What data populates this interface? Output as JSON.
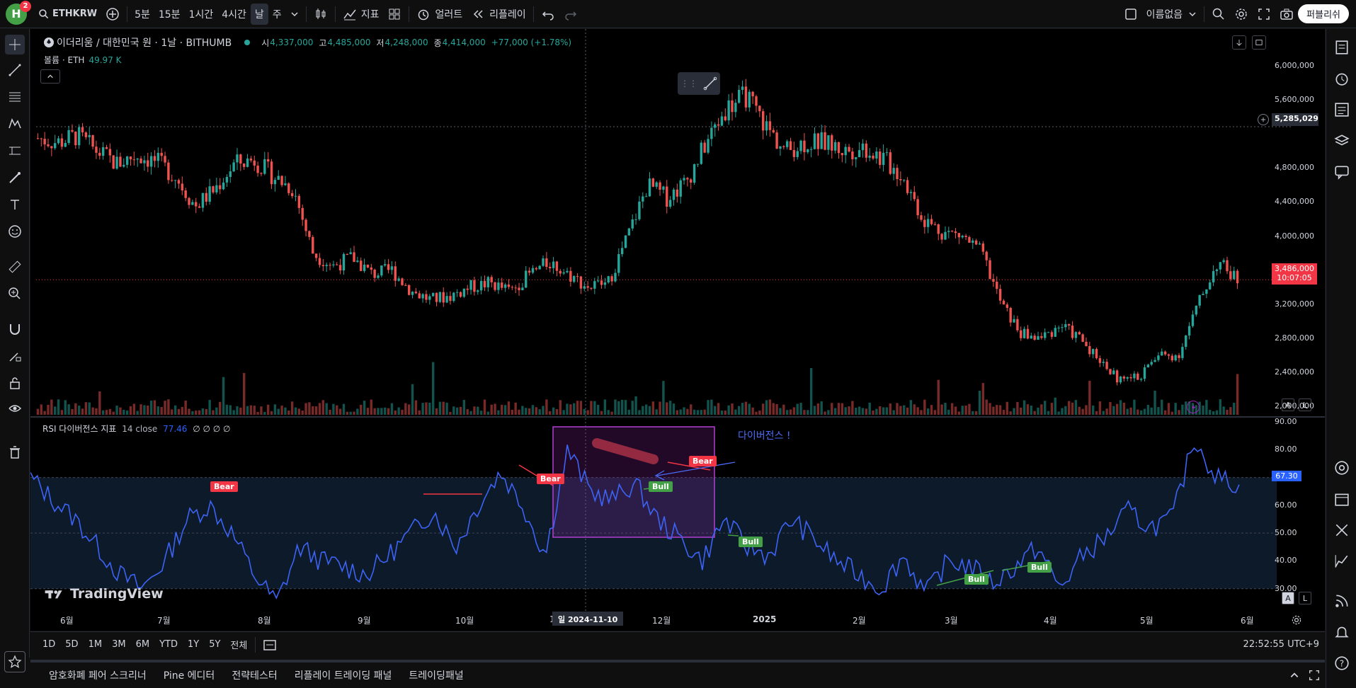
{
  "topbar": {
    "avatar_letter": "H",
    "notifications": "2",
    "symbol": "ETHKRW",
    "intervals": [
      "5분",
      "15분",
      "1시간",
      "4시간",
      "날",
      "주"
    ],
    "active_interval": "날",
    "indicators_label": "지표",
    "alert_label": "얼러트",
    "replay_label": "리플레이",
    "layout_name": "이름없음",
    "publish_label": "퍼블리쉬"
  },
  "legend": {
    "title": "이더리움 / 대한민국 원 · 1날 · BITHUMB",
    "o_label": "시",
    "o_val": "4,337,000",
    "h_label": "고",
    "h_val": "4,485,000",
    "l_label": "저",
    "l_val": "4,248,000",
    "c_label": "종",
    "c_val": "4,414,000",
    "change": "+77,000 (+1.78%)",
    "vol_label": "볼륨 · ETH",
    "vol_val": "49.97 K"
  },
  "rsi_legend": {
    "name": "RSI 다이버전스 지표",
    "params": "14 close",
    "value": "77.46",
    "extra": "∅ ∅ ∅ ∅"
  },
  "price_axis": [
    "6,000,000",
    "5,600,000",
    "5,285,029",
    "4,800,000",
    "4,400,000",
    "4,000,000",
    "3,600,000",
    "3,200,000",
    "2,800,000",
    "2,400,000",
    "2,000,000"
  ],
  "current_price": "3,486,000",
  "countdown": "10:07:05",
  "crosshair_price": "5,285,029",
  "rsi_axis": [
    "90.00",
    "80.00",
    "70.00",
    "60.00",
    "50.00",
    "40.00",
    "30.00"
  ],
  "rsi_current": "67.30",
  "time_axis": [
    "6월",
    "7월",
    "8월",
    "9월",
    "10월",
    "1",
    "12월",
    "2025",
    "2월",
    "3월",
    "4월",
    "5월",
    "6월"
  ],
  "crosshair_time": "일 2024-11-10",
  "annotation": "다이버전스 !",
  "tags": {
    "bear": "Bear",
    "bull": "Bull"
  },
  "watermark": "TradingView",
  "ranges": [
    "1D",
    "5D",
    "1M",
    "3M",
    "6M",
    "YTD",
    "1Y",
    "5Y",
    "전체"
  ],
  "clock": "22:52:55 UTC+9",
  "bottom_panels": [
    "암호화폐 페어 스크리너",
    "Pine 에디터",
    "전략테스터",
    "리플레이 트레이딩 패널",
    "트레이딩패널"
  ],
  "axis_btn_a": "A",
  "axis_btn_l": "L",
  "colors": {
    "up": "#26a69a",
    "down": "#ef5350",
    "rsi": "#3d63f5",
    "bear": "#f23645",
    "bull": "#43a047",
    "box": "#9c27b0"
  },
  "chart_data": {
    "type": "candlestick",
    "x_range": [
      "2024-05-25",
      "2025-05-15"
    ],
    "y_range": [
      1900000,
      6100000
    ],
    "close_series": [
      5150000,
      5100000,
      5180000,
      5000000,
      4850000,
      4950000,
      4880000,
      4700000,
      4350000,
      4550000,
      4850000,
      4900000,
      4700000,
      4550000,
      3800000,
      3650000,
      3750000,
      3550000,
      3600000,
      3350000,
      3250000,
      3300000,
      3400000,
      3450000,
      3350000,
      3550000,
      3700000,
      3550000,
      3400000,
      3450000,
      4000000,
      4600000,
      4450000,
      4650000,
      5100000,
      5500000,
      5650000,
      5300000,
      5000000,
      5100000,
      5100000,
      5000000,
      5050000,
      4900000,
      4700000,
      4200000,
      4050000,
      4000000,
      3800000,
      3200000,
      2850000,
      2800000,
      2950000,
      2800000,
      2550000,
      2300000,
      2350000,
      2600000,
      2600000,
      3200000,
      3700000,
      3486000
    ],
    "rsi_series": [
      70,
      62,
      55,
      45,
      35,
      30,
      40,
      55,
      60,
      50,
      35,
      25,
      45,
      40,
      38,
      35,
      42,
      50,
      58,
      45,
      60,
      72,
      60,
      42,
      80,
      65,
      62,
      68,
      55,
      48,
      40,
      55,
      45,
      42,
      55,
      48,
      40,
      35,
      30,
      42,
      28,
      40,
      38,
      32,
      38,
      45,
      30,
      42,
      48,
      58,
      52,
      55,
      84,
      70,
      67.3
    ]
  }
}
